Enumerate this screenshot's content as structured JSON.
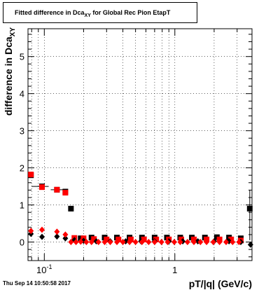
{
  "chart_data": {
    "type": "scatter",
    "title": "Fitted difference in Dca",
    "title_sub": "XY",
    "title_suffix": " for Global Rec Pion EtapT",
    "xlabel": "pT/|q| (GeV/c)",
    "ylabel": "difference in Dca",
    "ylabel_sub": "XY",
    "xscale": "log",
    "xlim": [
      0.075,
      3.9
    ],
    "ylim": [
      -0.5,
      5.75
    ],
    "grid": true,
    "y_ticks": [
      0,
      1,
      2,
      3,
      4,
      5
    ],
    "x_tick_labels": [
      {
        "value": 0.1,
        "label": "10",
        "exp": "-1"
      },
      {
        "value": 1,
        "label": "1",
        "exp": ""
      }
    ],
    "series": [
      {
        "marker": "square",
        "color": "#000000",
        "points": [
          {
            "x": 0.079,
            "y": 1.8
          },
          {
            "x": 0.096,
            "y": 1.5,
            "xerr": [
              0.08,
              0.108
            ]
          },
          {
            "x": 0.125,
            "y": 1.41,
            "xerr": [
              0.112,
              0.14
            ]
          },
          {
            "x": 0.145,
            "y": 1.36
          },
          {
            "x": 0.16,
            "y": 0.9
          },
          {
            "x": 0.19,
            "y": 0.1
          },
          {
            "x": 0.23,
            "y": 0.12
          },
          {
            "x": 0.29,
            "y": 0.12
          },
          {
            "x": 0.36,
            "y": 0.12
          },
          {
            "x": 0.45,
            "y": 0.12
          },
          {
            "x": 0.56,
            "y": 0.12
          },
          {
            "x": 0.7,
            "y": 0.12
          },
          {
            "x": 0.87,
            "y": 0.12
          },
          {
            "x": 1.1,
            "y": 0.12
          },
          {
            "x": 1.35,
            "y": 0.12
          },
          {
            "x": 1.7,
            "y": 0.12
          },
          {
            "x": 2.1,
            "y": 0.13
          },
          {
            "x": 2.6,
            "y": 0.12
          },
          {
            "x": 3.2,
            "y": 0.1
          },
          {
            "x": 3.75,
            "y": 0.9,
            "yerr": [
              0.05,
              1.4
            ]
          }
        ]
      },
      {
        "marker": "square",
        "color": "#ff0000",
        "points": [
          {
            "x": 0.079,
            "y": 1.82
          },
          {
            "x": 0.096,
            "y": 1.48
          },
          {
            "x": 0.125,
            "y": 1.41
          },
          {
            "x": 0.145,
            "y": 1.33
          },
          {
            "x": 0.17,
            "y": 0.11
          },
          {
            "x": 0.2,
            "y": 0.1
          },
          {
            "x": 0.24,
            "y": 0.08
          },
          {
            "x": 0.3,
            "y": 0.07
          },
          {
            "x": 0.37,
            "y": 0.07
          },
          {
            "x": 0.46,
            "y": 0.07
          },
          {
            "x": 0.58,
            "y": 0.07
          },
          {
            "x": 0.72,
            "y": 0.07
          },
          {
            "x": 0.9,
            "y": 0.07
          },
          {
            "x": 1.12,
            "y": 0.07
          },
          {
            "x": 1.4,
            "y": 0.07
          },
          {
            "x": 1.75,
            "y": 0.07
          },
          {
            "x": 2.2,
            "y": 0.07
          },
          {
            "x": 2.7,
            "y": 0.07
          },
          {
            "x": 3.2,
            "y": 0.04
          }
        ]
      },
      {
        "marker": "diamond",
        "color": "#000000",
        "points": [
          {
            "x": 0.079,
            "y": 0.22
          },
          {
            "x": 0.096,
            "y": 0.14
          },
          {
            "x": 0.125,
            "y": 0.15
          },
          {
            "x": 0.145,
            "y": 0.1
          },
          {
            "x": 0.17,
            "y": 0.05
          },
          {
            "x": 0.2,
            "y": 0.03
          },
          {
            "x": 0.25,
            "y": 0.02
          },
          {
            "x": 0.32,
            "y": 0.02
          },
          {
            "x": 0.42,
            "y": 0.02
          },
          {
            "x": 0.55,
            "y": 0.02
          },
          {
            "x": 0.7,
            "y": 0.02
          },
          {
            "x": 0.9,
            "y": 0.02
          },
          {
            "x": 1.15,
            "y": 0.02
          },
          {
            "x": 1.5,
            "y": 0.02
          },
          {
            "x": 2.0,
            "y": 0.02
          },
          {
            "x": 2.6,
            "y": 0.02
          },
          {
            "x": 3.2,
            "y": 0.0
          },
          {
            "x": 3.8,
            "y": -0.07
          }
        ]
      },
      {
        "marker": "diamond",
        "color": "#ff0000",
        "points": [
          {
            "x": 0.079,
            "y": 0.3
          },
          {
            "x": 0.096,
            "y": 0.33
          },
          {
            "x": 0.125,
            "y": 0.28
          },
          {
            "x": 0.145,
            "y": 0.2
          },
          {
            "x": 0.16,
            "y": 0.0
          },
          {
            "x": 0.175,
            "y": 0.0
          },
          {
            "x": 0.19,
            "y": 0.01
          },
          {
            "x": 0.21,
            "y": 0.0
          },
          {
            "x": 0.23,
            "y": 0.0
          },
          {
            "x": 0.26,
            "y": 0.0
          },
          {
            "x": 0.29,
            "y": 0.0
          },
          {
            "x": 0.32,
            "y": 0.0
          },
          {
            "x": 0.36,
            "y": 0.0
          },
          {
            "x": 0.4,
            "y": 0.0
          },
          {
            "x": 0.45,
            "y": 0.0
          },
          {
            "x": 0.5,
            "y": 0.0
          },
          {
            "x": 0.56,
            "y": 0.0
          },
          {
            "x": 0.63,
            "y": 0.0
          },
          {
            "x": 0.7,
            "y": 0.0
          },
          {
            "x": 0.79,
            "y": 0.0
          },
          {
            "x": 0.88,
            "y": 0.0
          },
          {
            "x": 0.99,
            "y": 0.0
          },
          {
            "x": 1.1,
            "y": 0.0
          },
          {
            "x": 1.25,
            "y": 0.0
          },
          {
            "x": 1.4,
            "y": 0.0
          },
          {
            "x": 1.57,
            "y": 0.0
          },
          {
            "x": 1.75,
            "y": 0.0
          },
          {
            "x": 1.97,
            "y": 0.0
          },
          {
            "x": 2.2,
            "y": 0.0
          },
          {
            "x": 2.47,
            "y": 0.0
          },
          {
            "x": 2.77,
            "y": 0.0
          },
          {
            "x": 3.1,
            "y": 0.0
          }
        ]
      }
    ]
  },
  "footer": {
    "timestamp": "Thu Sep 14 10:50:58 2017"
  }
}
